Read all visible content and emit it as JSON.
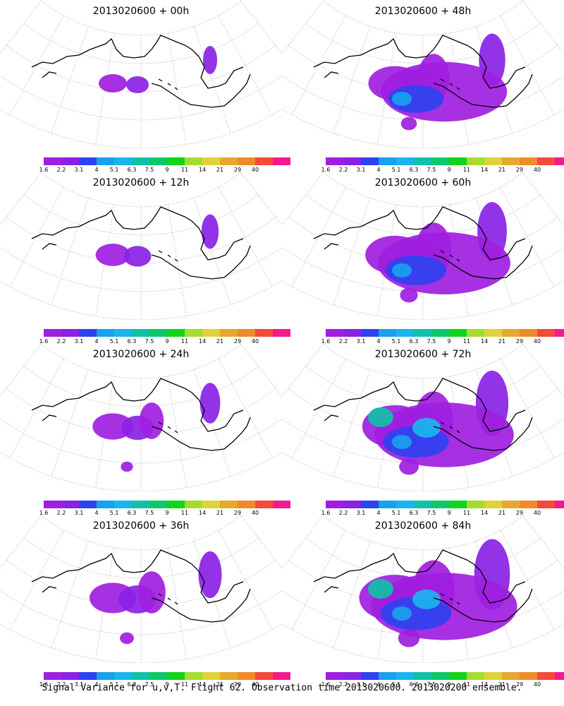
{
  "caption": "Signal Variance for u,v,T. Flight 62. Observation time 2013020600. 2013020200 ensemble.",
  "panels": [
    {
      "title": "2013020600 + 00h",
      "lead": 0
    },
    {
      "title": "2013020600 + 48h",
      "lead": 48
    },
    {
      "title": "2013020600 + 12h",
      "lead": 12
    },
    {
      "title": "2013020600 + 60h",
      "lead": 60
    },
    {
      "title": "2013020600 + 24h",
      "lead": 24
    },
    {
      "title": "2013020600 + 72h",
      "lead": 72
    },
    {
      "title": "2013020600 + 36h",
      "lead": 36
    },
    {
      "title": "2013020600 + 84h",
      "lead": 84
    }
  ],
  "colorbar": {
    "labels": [
      "1.6",
      "2.2",
      "3.1",
      "4",
      "5.1",
      "6.3",
      "7.5",
      "9",
      "11",
      "14",
      "21",
      "29",
      "40"
    ],
    "colors": [
      "#a01ee0",
      "#8a22e6",
      "#2f42ef",
      "#19a0ef",
      "#1ab4ee",
      "#10c0a8",
      "#0dc86a",
      "#12d41a",
      "#a6dc30",
      "#dcd43a",
      "#e6a82e",
      "#f08a2a",
      "#f44a3a",
      "#f41a8e"
    ]
  }
}
